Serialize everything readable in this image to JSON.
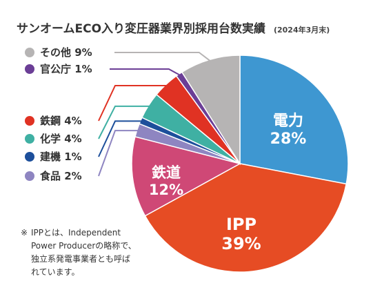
{
  "chart_data": {
    "type": "pie",
    "title": "サンオームECO入り変圧器業界別採用台数実績",
    "subtitle": "(2024年3月末)",
    "slices": [
      {
        "name": "電力",
        "value": 28,
        "color": "#3e97d1",
        "label_inside": true
      },
      {
        "name": "IPP",
        "value": 39,
        "color": "#e64c24",
        "label_inside": true
      },
      {
        "name": "鉄道",
        "value": 12,
        "color": "#cf4876",
        "label_inside": true
      },
      {
        "name": "食品",
        "value": 2,
        "color": "#8e85c1",
        "label_inside": false
      },
      {
        "name": "建機",
        "value": 1,
        "color": "#1d4f9b",
        "label_inside": false
      },
      {
        "name": "化学",
        "value": 4,
        "color": "#3fb0a3",
        "label_inside": false
      },
      {
        "name": "鉄鋼",
        "value": 4,
        "color": "#e03223",
        "label_inside": false
      },
      {
        "name": "官公庁",
        "value": 1,
        "color": "#6b3e96",
        "label_inside": false
      },
      {
        "name": "その他",
        "value": 9,
        "color": "#b6b4b4",
        "label_inside": false
      }
    ],
    "value_suffix": "%",
    "legend": {
      "placement": "left",
      "groups": [
        [
          "その他",
          "官公庁"
        ],
        [
          "鉄鋼",
          "化学",
          "建機",
          "食品"
        ]
      ]
    }
  },
  "note": {
    "mark": "※",
    "lines": [
      "IPPとは、Independent",
      "Power Producerの略称で、",
      "独立系発電事業者とも呼ば",
      "れています。"
    ]
  }
}
